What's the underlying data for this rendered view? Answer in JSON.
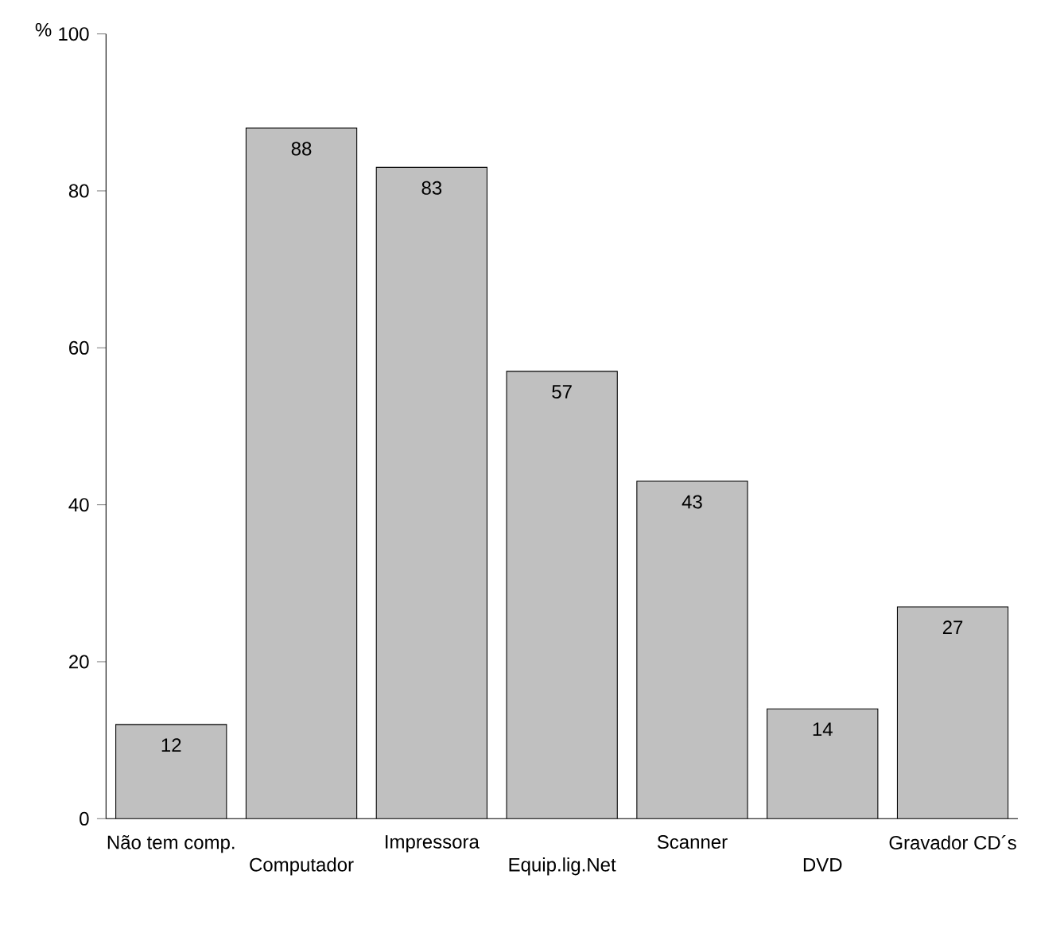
{
  "chart_data": {
    "type": "bar",
    "ylabel": "%",
    "categories": [
      "Não tem comp.",
      "Computador",
      "Impressora",
      "Equip.lig.Net",
      "Scanner",
      "DVD",
      "Gravador CD´s"
    ],
    "values": [
      12,
      88,
      83,
      57,
      43,
      14,
      27
    ],
    "color": "#c0c0c0",
    "ylim": [
      0,
      100
    ],
    "yticks": [
      0,
      20,
      40,
      60,
      80,
      100
    ],
    "data_labels": true,
    "grid": false
  }
}
